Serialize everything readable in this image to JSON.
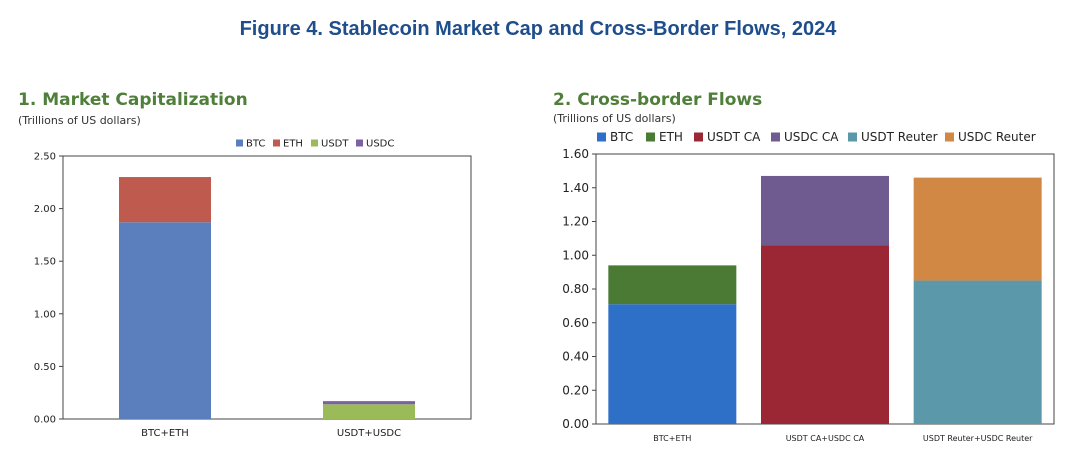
{
  "figure_title": "Figure 4. Stablecoin Market Cap and Cross-Border Flows, 2024",
  "panels": {
    "left": {
      "title": "1. Market Capitalization",
      "subtitle": "(Trillions of US dollars)"
    },
    "right": {
      "title": "2. Cross-border Flows",
      "subtitle": "(Trillions of US dollars)"
    }
  },
  "chart_data": [
    {
      "type": "bar",
      "stacked": true,
      "title": "1. Market Capitalization",
      "ylabel": "(Trillions of US dollars)",
      "categories": [
        "BTC+ETH",
        "USDT+USDC"
      ],
      "ylim": [
        0,
        2.5
      ],
      "yticks": [
        "0.00",
        "0.50",
        "1.00",
        "1.50",
        "2.00",
        "2.50"
      ],
      "legend_position": "top",
      "series": [
        {
          "name": "BTC",
          "color": "#5a7fbc",
          "values": [
            1.87,
            0
          ]
        },
        {
          "name": "ETH",
          "color": "#bf5a4e",
          "values": [
            0.43,
            0
          ]
        },
        {
          "name": "USDT",
          "color": "#9bbb59",
          "values": [
            0,
            0.14
          ]
        },
        {
          "name": "USDC",
          "color": "#7c62a4",
          "values": [
            0,
            0.03
          ]
        }
      ]
    },
    {
      "type": "bar",
      "stacked": true,
      "title": "2. Cross-border Flows",
      "ylabel": "(Trillions of US dollars)",
      "categories": [
        "BTC+ETH",
        "USDT CA+USDC CA",
        "USDT Reuter+USDC Reuter"
      ],
      "ylim": [
        0,
        1.6
      ],
      "yticks": [
        "0.00",
        "0.20",
        "0.40",
        "0.60",
        "0.80",
        "1.00",
        "1.20",
        "1.40",
        "1.60"
      ],
      "legend_position": "top",
      "series": [
        {
          "name": "BTC",
          "color": "#2e6fc8",
          "values": [
            0.71,
            0,
            0
          ]
        },
        {
          "name": "ETH",
          "color": "#4a7a34",
          "values": [
            0.23,
            0,
            0
          ]
        },
        {
          "name": "USDT CA",
          "color": "#9a2733",
          "values": [
            0,
            1.06,
            0
          ]
        },
        {
          "name": "USDC CA",
          "color": "#6f5b8f",
          "values": [
            0,
            0.41,
            0
          ]
        },
        {
          "name": "USDT Reuter",
          "color": "#5b98aa",
          "values": [
            0,
            0,
            0.85
          ]
        },
        {
          "name": "USDC Reuter",
          "color": "#d08844",
          "values": [
            0,
            0,
            0.61
          ]
        }
      ]
    }
  ]
}
